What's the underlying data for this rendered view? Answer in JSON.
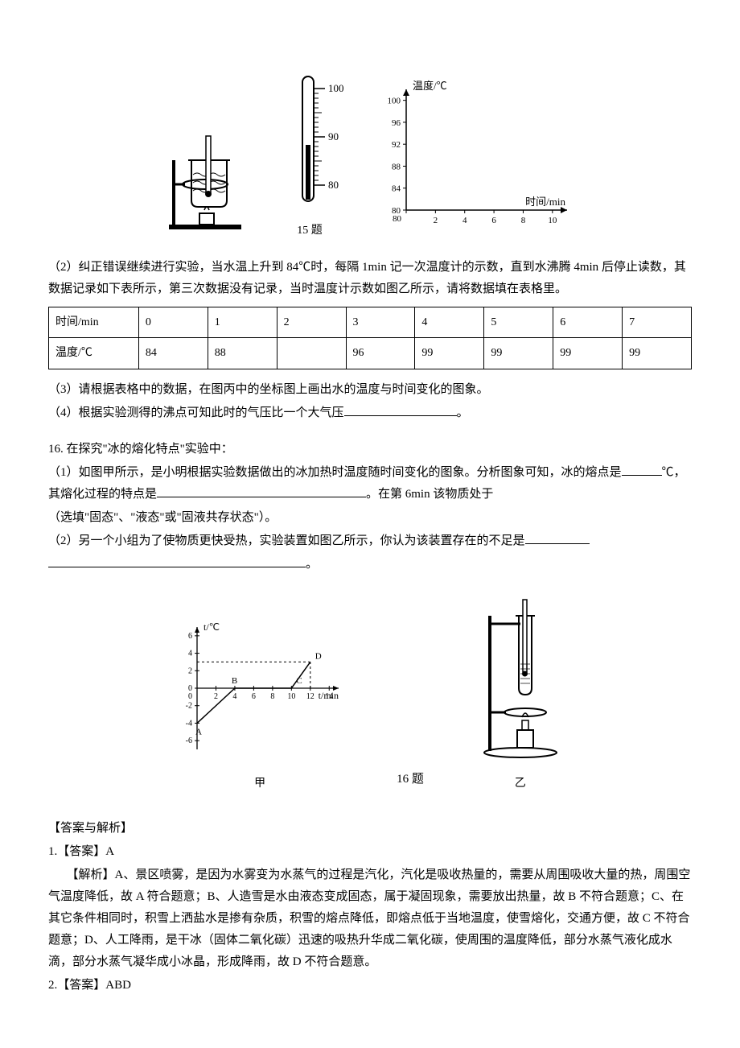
{
  "q15": {
    "thermometer": {
      "ticks": [
        100,
        90,
        80
      ],
      "tick_color": "#000000",
      "stem_color": "#000000",
      "bulb_color": "#000000"
    },
    "chart": {
      "type": "line",
      "y_label": "温度/℃",
      "x_label": "时间/min",
      "x_ticks": [
        0,
        2,
        4,
        6,
        8,
        10
      ],
      "y_ticks": [
        80,
        84,
        88,
        92,
        96,
        100
      ],
      "xlim": [
        0,
        11
      ],
      "ylim": [
        80,
        102
      ],
      "axis_color": "#000000",
      "tick_fontsize": 11,
      "label_fontsize": 13
    },
    "caption": "15 题",
    "p2": "（2）纠正错误继续进行实验，当水温上升到 84℃时，每隔 1min 记一次温度计的示数，直到水沸腾 4min 后停止读数，其数据记录如下表所示，第三次数据没有记录，当时温度计示数如图乙所示，请将数据填在表格里。",
    "table": {
      "columns": [
        "时间/min",
        "0",
        "1",
        "2",
        "3",
        "4",
        "5",
        "6",
        "7"
      ],
      "rows": [
        [
          "温度/℃",
          "84",
          "88",
          "",
          "96",
          "99",
          "99",
          "99",
          "99"
        ]
      ],
      "col_widths": [
        "14%",
        "10.75%",
        "10.75%",
        "10.75%",
        "10.75%",
        "10.75%",
        "10.75%",
        "10.75%",
        "10.75%"
      ]
    },
    "p3": "（3）请根据表格中的数据，在图丙中的坐标图上画出水的温度与时间变化的图象。",
    "p4_a": "（4）根据实验测得的沸点可知此时的气压比一个大气压",
    "p4_b": "。"
  },
  "q16": {
    "title": "16. 在探究\"冰的熔化特点\"实验中：",
    "p1_a": "（1）如图甲所示，是小明根据实验数据做出的冰加热时温度随时间变化的图象。分析图象可知，冰的熔点是",
    "p1_b": "℃，其熔化过程的特点是",
    "p1_c": "。在第 6min 该物质处于",
    "p1_d": "（选填\"固态\"、\"液态\"或\"固液共存状态\"）。",
    "p2_a": "（2）另一个小组为了使物质更快受热，实验装置如图乙所示，你认为该装置存在的不足是",
    "p2_b": "。",
    "chart": {
      "type": "line",
      "y_label": "t/℃",
      "x_label": "t/min",
      "x_ticks": [
        2,
        4,
        6,
        8,
        10,
        12,
        14
      ],
      "y_ticks": [
        -6,
        -4,
        -2,
        0,
        2,
        4,
        6
      ],
      "xlim": [
        0,
        15
      ],
      "ylim": [
        -7,
        7
      ],
      "series": {
        "points": [
          {
            "x": 0,
            "y": -4,
            "label": "A"
          },
          {
            "x": 4,
            "y": 0,
            "label": "B"
          },
          {
            "x": 10,
            "y": 0,
            "label": "C"
          },
          {
            "x": 12,
            "y": 3,
            "label": "D"
          }
        ],
        "line_color": "#000000",
        "line_width": 1.5
      },
      "axis_color": "#000000",
      "tick_fontsize": 10,
      "label_fontsize": 12,
      "dash_color": "#000000"
    },
    "caption_left": "甲",
    "caption_center": "16 题",
    "caption_right": "乙"
  },
  "answers": {
    "heading": "【答案与解析】",
    "a1_h": "1.【答案】A",
    "a1_exp": "【解析】A、景区喷雾，是因为水雾变为水蒸气的过程是汽化，汽化是吸收热量的，需要从周围吸收大量的热，周围空气温度降低，故 A 符合题意；B、人造雪是水由液态变成固态，属于凝固现象，需要放出热量，故 B 不符合题意；C、在其它条件相同时，积雪上洒盐水是掺有杂质，积雪的熔点降低，即熔点低于当地温度，使雪熔化，交通方便，故 C 不符合题意；D、人工降雨，是干冰（固体二氧化碳）迅速的吸热升华成二氧化碳，使周围的温度降低，部分水蒸气液化成水滴，部分水蒸气凝华成小冰晶，形成降雨，故 D 不符合题意。",
    "a2_h": "2.【答案】ABD"
  }
}
